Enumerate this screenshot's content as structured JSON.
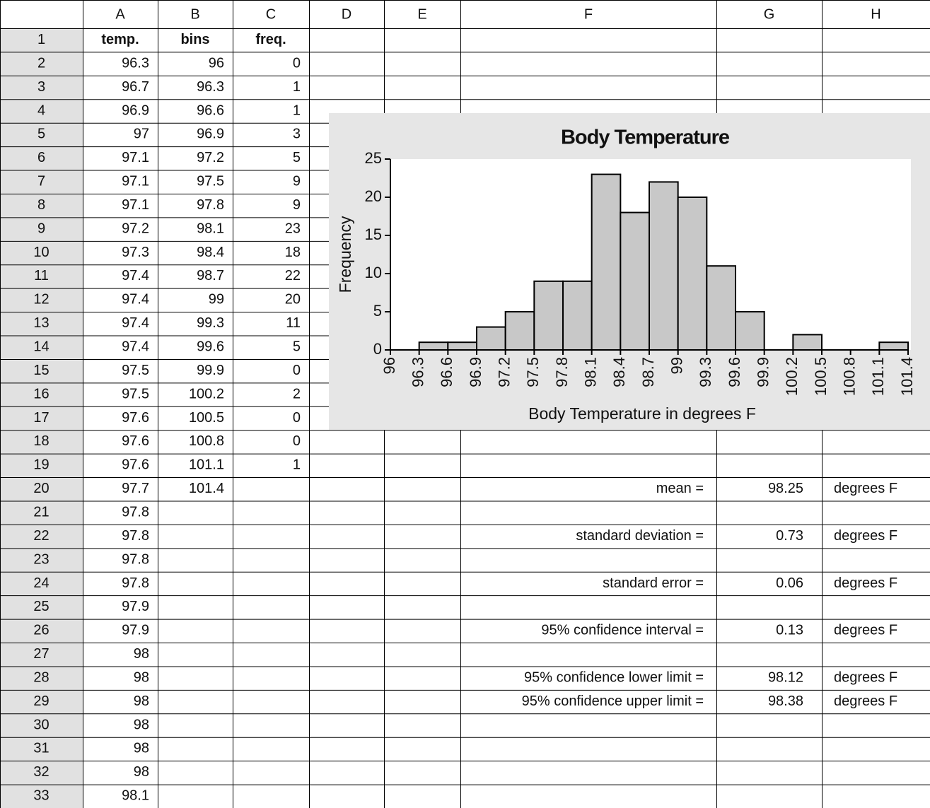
{
  "sheet": {
    "column_headers": [
      "A",
      "B",
      "C",
      "D",
      "E",
      "F",
      "G",
      "H"
    ],
    "row_headers": [
      1,
      2,
      3,
      4,
      5,
      6,
      7,
      8,
      9,
      10,
      11,
      12,
      13,
      14,
      15,
      16,
      17,
      18,
      19,
      20,
      21,
      22,
      23,
      24,
      25,
      26,
      27,
      28,
      29,
      30,
      31,
      32,
      33
    ],
    "temp": {
      "header": "temp.",
      "values": [
        96.3,
        96.7,
        96.9,
        97,
        97.1,
        97.1,
        97.1,
        97.2,
        97.3,
        97.4,
        97.4,
        97.4,
        97.4,
        97.5,
        97.5,
        97.6,
        97.6,
        97.6,
        97.7,
        97.8,
        97.8,
        97.8,
        97.8,
        97.9,
        97.9,
        98,
        98,
        98,
        98,
        98,
        98,
        98.1
      ]
    },
    "bins": {
      "header": "bins",
      "values": [
        96,
        96.3,
        96.6,
        96.9,
        97.2,
        97.5,
        97.8,
        98.1,
        98.4,
        98.7,
        99,
        99.3,
        99.6,
        99.9,
        100.2,
        100.5,
        100.8,
        101.1,
        101.4
      ]
    },
    "freq": {
      "header": "freq.",
      "values": [
        0,
        1,
        1,
        3,
        5,
        9,
        9,
        23,
        18,
        22,
        20,
        11,
        5,
        0,
        2,
        0,
        0,
        1
      ]
    },
    "stats": [
      {
        "label": "mean =",
        "value": 98.25,
        "unit": "degrees F"
      },
      {
        "label": "standard deviation =",
        "value": 0.73,
        "unit": "degrees F"
      },
      {
        "label": "standard error =",
        "value": 0.06,
        "unit": "degrees F"
      },
      {
        "label": "95% confidence interval =",
        "value": 0.13,
        "unit": "degrees F"
      },
      {
        "label": "95% confidence lower limit =",
        "value": 98.12,
        "unit": "degrees F"
      },
      {
        "label": "95% confidence upper limit =",
        "value": 98.38,
        "unit": "degrees F"
      }
    ]
  },
  "chart_data": {
    "type": "histogram",
    "title": "Body Temperature",
    "x_label": "Body Temperature in degrees F",
    "y_label": "Frequency",
    "bins": [
      96,
      96.3,
      96.6,
      96.9,
      97.2,
      97.5,
      97.8,
      98.1,
      98.4,
      98.7,
      99,
      99.3,
      99.6,
      99.9,
      100.2,
      100.5,
      100.8,
      101.1,
      101.4
    ],
    "counts": [
      0,
      1,
      1,
      3,
      5,
      9,
      9,
      23,
      18,
      22,
      20,
      11,
      5,
      0,
      2,
      0,
      0,
      1
    ],
    "color": "#c8c8c8",
    "xlim": [
      96,
      101.4
    ],
    "ylim": [
      0,
      25
    ],
    "yticks": [
      0,
      5,
      10,
      15,
      20,
      25
    ]
  }
}
